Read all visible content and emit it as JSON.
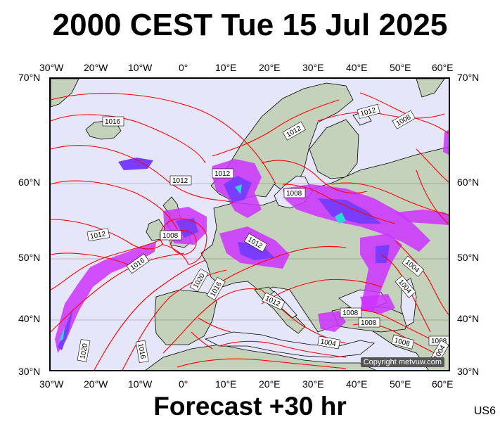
{
  "header": {
    "title": "2000 CEST Tue 15 Jul 2025"
  },
  "footer": {
    "forecast": "Forecast +30 hr",
    "code": "US6"
  },
  "map": {
    "lon_labels": [
      "30°W",
      "20°W",
      "10°W",
      "0°",
      "10°E",
      "20°E",
      "30°E",
      "40°E",
      "50°E",
      "60°E"
    ],
    "lat_labels": [
      "70°N",
      "60°N",
      "50°N",
      "40°N",
      "30°N"
    ],
    "isobar_labels": [
      "1016",
      "1012",
      "1012",
      "1008",
      "1012",
      "1008",
      "1012",
      "1008",
      "1012",
      "1016",
      "1020",
      "1016",
      "1012",
      "1008",
      "1012",
      "1016",
      "1020",
      "1004",
      "1004",
      "1008",
      "1004",
      "1008",
      "1008",
      "1004"
    ],
    "copyright": "Copyright metvuw.com",
    "colors": {
      "ocean": "#e6e6fa",
      "land": "#c4d2bb",
      "isobar": "#ff0000",
      "rain_light": "#cc33ff",
      "rain_mid": "#7a3cff",
      "rain_heavy": "#2ad8d8"
    }
  }
}
